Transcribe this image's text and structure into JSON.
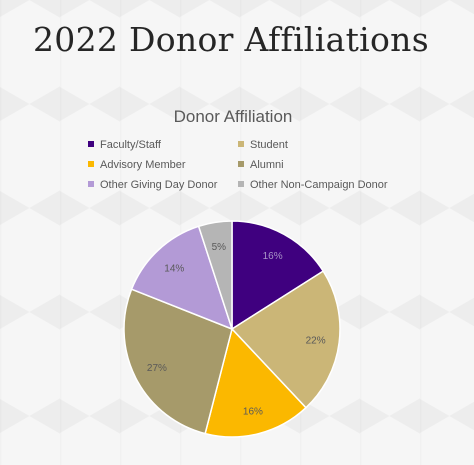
{
  "page": {
    "title": "2022 Donor Affiliations"
  },
  "chart_data": {
    "type": "pie",
    "title": "Donor Affiliation",
    "legend_position": "top",
    "categories": [
      "Faculty/Staff",
      "Student",
      "Advisory Member",
      "Alumni",
      "Other Giving Day Donor",
      "Other Non-Campaign Donor"
    ],
    "values": [
      16,
      22,
      16,
      27,
      14,
      5
    ],
    "labels": [
      "16%",
      "22%",
      "16%",
      "27%",
      "14%",
      "5%"
    ],
    "colors": [
      "#3f007f",
      "#cbb677",
      "#fbb800",
      "#a69a6a",
      "#b39ad6",
      "#b5b5b5"
    ],
    "label_colors": [
      "#a995c8",
      "#595959",
      "#595959",
      "#595959",
      "#595959",
      "#595959"
    ]
  }
}
